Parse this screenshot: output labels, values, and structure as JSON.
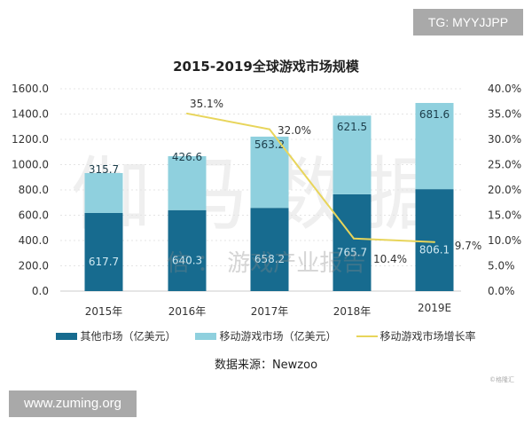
{
  "watermarks": {
    "top_right": "TG: MYYJJPP",
    "bottom_left": "www.zuming.org",
    "background": "伽马数据",
    "background_sub": "信 ： 游戏产业报告",
    "copyright": "©格隆汇"
  },
  "source": "数据来源：Newzoo",
  "colors": {
    "other": "#176b8f",
    "mobile": "#8fd0de",
    "line": "#e8d55b"
  },
  "chart_data": {
    "type": "bar",
    "stacked": true,
    "title": "2015-2019全球游戏市场规模",
    "categories": [
      "2015年",
      "2016年",
      "2017年",
      "2018年",
      "2019E"
    ],
    "series": [
      {
        "name": "其他市场（亿美元）",
        "type": "bar",
        "axis": "left",
        "values": [
          617.7,
          640.3,
          658.2,
          765.7,
          806.1
        ],
        "labels": [
          "617.7",
          "640.3",
          "658.2",
          "765.7",
          "806.1"
        ]
      },
      {
        "name": "移动游戏市场（亿美元）",
        "type": "bar",
        "axis": "left",
        "values": [
          315.7,
          426.6,
          563.2,
          621.5,
          681.6
        ],
        "labels": [
          "315.7",
          "426.6",
          "563.2",
          "621.5",
          "681.6"
        ]
      },
      {
        "name": "移动游戏市场增长率",
        "type": "line",
        "axis": "right",
        "values": [
          null,
          35.1,
          32.0,
          10.4,
          9.7
        ],
        "labels": [
          "",
          "35.1%",
          "32.0%",
          "10.4%",
          "9.7%"
        ]
      }
    ],
    "ylim": [
      0,
      1600
    ],
    "yticks": [
      "0.0",
      "200.0",
      "400.0",
      "600.0",
      "800.0",
      "1000.0",
      "1200.0",
      "1400.0",
      "1600.0"
    ],
    "y2lim": [
      0,
      40
    ],
    "y2ticks": [
      "0.0%",
      "5.0%",
      "10.0%",
      "15.0%",
      "20.0%",
      "25.0%",
      "30.0%",
      "35.0%",
      "40.0%"
    ],
    "grid": true,
    "legend": "bottom"
  }
}
